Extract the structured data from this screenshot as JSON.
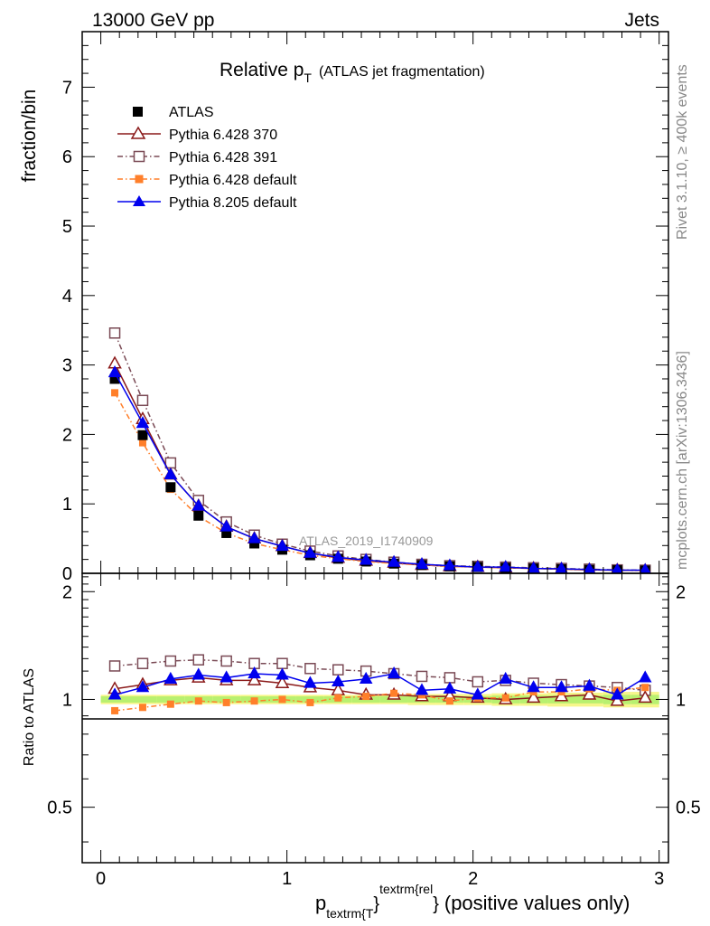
{
  "header": {
    "left": "13000 GeV pp",
    "right": "Jets"
  },
  "side": {
    "rivet": "Rivet 3.1.10, ≥ 400k events",
    "mcplots": "mcplots.cern.ch [arXiv:1306.3436]"
  },
  "watermark": "ATLAS_2019_I1740909",
  "title": {
    "main": "Relative p",
    "sub": "T",
    "extra": "(ATLAS jet fragmentation)"
  },
  "xlabel": {
    "p": "p",
    "sub": "textrm{T",
    "close1": "}",
    "sup": "textrm{rel",
    "close2": "}",
    "rest": "(positive values only)"
  },
  "colors": {
    "atlas": "#000000",
    "p370": "#8b1a1a",
    "p391": "#7a4a55",
    "p6def": "#ff7f2a",
    "p8def": "#0000ee",
    "band_inner": "#b8f070",
    "band_outer": "#f6f68a"
  },
  "chart_data": [
    {
      "type": "line",
      "name": "main",
      "ylabel": "fraction/bin",
      "xlim": [
        -0.1,
        3.05
      ],
      "ylim": [
        0,
        7.8
      ],
      "xticks": [
        0,
        1,
        2,
        3
      ],
      "yticks": [
        0,
        1,
        2,
        3,
        4,
        5,
        6,
        7
      ],
      "ytick_labels": [
        "0",
        "1",
        "2",
        "3",
        "4",
        "5",
        "6",
        "7"
      ],
      "x": [
        0.075,
        0.225,
        0.375,
        0.525,
        0.675,
        0.825,
        0.975,
        1.125,
        1.275,
        1.425,
        1.575,
        1.725,
        1.875,
        2.025,
        2.175,
        2.325,
        2.475,
        2.625,
        2.775,
        2.925
      ],
      "series": [
        {
          "name": "ATLAS",
          "key": "atlas",
          "values": [
            2.8,
            1.99,
            1.24,
            0.83,
            0.58,
            0.43,
            0.34,
            0.26,
            0.21,
            0.17,
            0.14,
            0.12,
            0.1,
            0.09,
            0.08,
            0.07,
            0.06,
            0.05,
            0.045,
            0.04
          ]
        },
        {
          "name": "Pythia 6.428 370",
          "key": "p370",
          "values": [
            3.02,
            2.22,
            1.42,
            0.97,
            0.67,
            0.5,
            0.39,
            0.29,
            0.22,
            0.18,
            0.15,
            0.12,
            0.1,
            0.09,
            0.08,
            0.07,
            0.06,
            0.05,
            0.045,
            0.04
          ]
        },
        {
          "name": "Pythia 6.428 391",
          "key": "p391",
          "values": [
            3.46,
            2.49,
            1.59,
            1.05,
            0.74,
            0.55,
            0.42,
            0.32,
            0.25,
            0.2,
            0.16,
            0.13,
            0.11,
            0.1,
            0.09,
            0.08,
            0.07,
            0.06,
            0.05,
            0.045
          ]
        },
        {
          "name": "Pythia 6.428 default",
          "key": "p6def",
          "values": [
            2.6,
            1.88,
            1.21,
            0.82,
            0.58,
            0.43,
            0.34,
            0.26,
            0.21,
            0.17,
            0.14,
            0.12,
            0.1,
            0.09,
            0.08,
            0.07,
            0.06,
            0.05,
            0.045,
            0.04
          ]
        },
        {
          "name": "Pythia 8.205 default",
          "key": "p8def",
          "values": [
            2.89,
            2.16,
            1.42,
            0.97,
            0.67,
            0.5,
            0.39,
            0.29,
            0.23,
            0.19,
            0.16,
            0.13,
            0.11,
            0.09,
            0.09,
            0.07,
            0.065,
            0.055,
            0.045,
            0.045
          ]
        }
      ]
    },
    {
      "type": "line",
      "name": "ratio",
      "ylabel": "Ratio to ATLAS",
      "xlim": [
        -0.1,
        3.05
      ],
      "ylim": [
        0.35,
        2.25
      ],
      "xticks": [
        0,
        1,
        2,
        3
      ],
      "xtick_labels": [
        "0",
        "1",
        "2",
        "3"
      ],
      "yticks": [
        0.5,
        1,
        2
      ],
      "ytick_labels": [
        "0.5",
        "1",
        "2"
      ],
      "x": [
        0.075,
        0.225,
        0.375,
        0.525,
        0.675,
        0.825,
        0.975,
        1.125,
        1.275,
        1.425,
        1.575,
        1.725,
        1.875,
        2.025,
        2.175,
        2.325,
        2.475,
        2.625,
        2.775,
        2.925
      ],
      "band_inner": [
        0.02,
        0.02,
        0.02,
        0.02,
        0.02,
        0.02,
        0.02,
        0.02,
        0.02,
        0.02,
        0.02,
        0.02,
        0.02,
        0.02,
        0.025,
        0.025,
        0.025,
        0.025,
        0.03,
        0.03
      ],
      "band_outer": [
        0.03,
        0.03,
        0.03,
        0.03,
        0.03,
        0.03,
        0.03,
        0.03,
        0.03,
        0.03,
        0.03,
        0.035,
        0.035,
        0.035,
        0.04,
        0.04,
        0.045,
        0.045,
        0.05,
        0.05
      ],
      "series": [
        {
          "name": "Pythia 6.428 370",
          "key": "p370",
          "values": [
            1.07,
            1.1,
            1.13,
            1.15,
            1.13,
            1.13,
            1.11,
            1.08,
            1.06,
            1.03,
            1.03,
            1.02,
            1.02,
            1.01,
            1.0,
            1.01,
            1.02,
            1.03,
            0.99,
            1.01
          ]
        },
        {
          "name": "Pythia 6.428 391",
          "key": "p391",
          "values": [
            1.24,
            1.26,
            1.28,
            1.29,
            1.28,
            1.26,
            1.26,
            1.22,
            1.21,
            1.2,
            1.18,
            1.16,
            1.15,
            1.12,
            1.13,
            1.11,
            1.1,
            1.09,
            1.08,
            1.06
          ]
        },
        {
          "name": "Pythia 6.428 default",
          "key": "p6def",
          "values": [
            0.93,
            0.95,
            0.97,
            0.99,
            0.98,
            0.99,
            1.0,
            0.98,
            1.01,
            1.02,
            1.04,
            1.03,
            0.99,
            1.01,
            1.01,
            1.05,
            1.05,
            1.07,
            1.06,
            1.08
          ]
        },
        {
          "name": "Pythia 8.205 default",
          "key": "p8def",
          "values": [
            1.03,
            1.08,
            1.14,
            1.17,
            1.15,
            1.18,
            1.17,
            1.11,
            1.12,
            1.14,
            1.18,
            1.06,
            1.07,
            1.03,
            1.14,
            1.08,
            1.08,
            1.09,
            1.03,
            1.15
          ]
        }
      ]
    }
  ]
}
